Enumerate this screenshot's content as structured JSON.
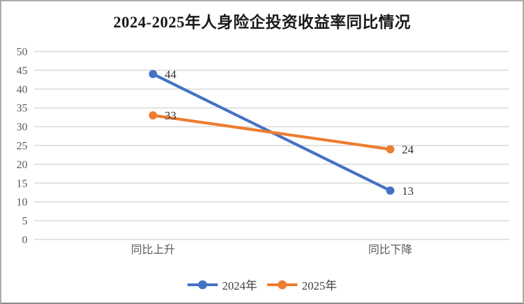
{
  "title": "2024-2025年人身险企投资收益率同比情况",
  "chart_data": {
    "type": "line",
    "title": "2024-2025年人身险企投资收益率同比情况",
    "categories": [
      "同比上升",
      "同比下降"
    ],
    "series": [
      {
        "name": "2024年",
        "color": "#4472c4",
        "values": [
          44,
          13
        ]
      },
      {
        "name": "2025年",
        "color": "#ed7d31",
        "values": [
          33,
          24
        ]
      }
    ],
    "ylim": [
      0,
      50
    ],
    "ytick_step": 5,
    "ytick_labels": [
      "0",
      "5",
      "10",
      "15",
      "20",
      "25",
      "30",
      "35",
      "40",
      "45",
      "50"
    ],
    "data_labels": true,
    "grid": "horizontal",
    "gridline_color": "#d9d9d9",
    "legend_position": "bottom-center",
    "xlabel": "",
    "ylabel": ""
  }
}
